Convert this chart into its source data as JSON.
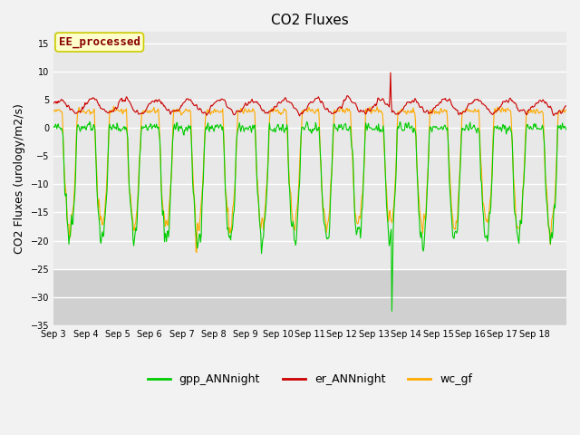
{
  "title": "CO2 Fluxes",
  "ylabel": "CO2 Fluxes (urology/m2/s)",
  "ylim": [
    -35,
    17
  ],
  "yticks": [
    -35,
    -30,
    -25,
    -20,
    -15,
    -10,
    -5,
    0,
    5,
    10,
    15
  ],
  "plot_bg_upper": "#e8e8e8",
  "plot_bg_lower": "#d0d0d0",
  "fig_bg": "#f2f2f2",
  "line_colors": {
    "gpp": "#00cc00",
    "er": "#cc0000",
    "wc": "#ffaa00"
  },
  "legend_labels": [
    "gpp_ANNnight",
    "er_ANNnight",
    "wc_gf"
  ],
  "annotation_text": "EE_processed",
  "annotation_color": "#880000",
  "annotation_bg": "#ffffcc",
  "annotation_edge": "#cccc00",
  "n_days": 16,
  "n_per_day": 48,
  "xtick_labels": [
    "Sep 3",
    "Sep 4",
    "Sep 5",
    "Sep 6",
    "Sep 7",
    "Sep 8",
    "Sep 9",
    "Sep 10",
    "Sep 11",
    "Sep 12",
    "Sep 13",
    "Sep 14",
    "Sep 15",
    "Sep 16",
    "Sep 17",
    "Sep 18"
  ],
  "title_fontsize": 11,
  "axis_fontsize": 9,
  "tick_fontsize": 7,
  "legend_fontsize": 9,
  "line_width": 0.8,
  "seed": 42
}
